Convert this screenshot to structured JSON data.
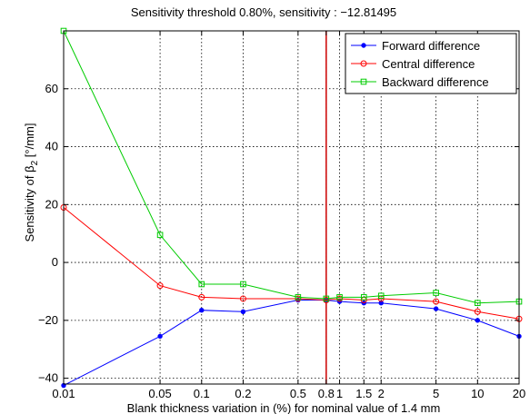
{
  "chart_data": {
    "type": "line",
    "title": "Sensitivity threshold  0.80%, sensitivity : −12.81495",
    "xlabel": "Blank thickness variation in (%) for  nominal value of 1.4 mm",
    "ylabel_main": "Sensitivity of β",
    "ylabel_sub": "2",
    "ylabel_unit": " [°/mm]",
    "x_scale": "log",
    "xlim": [
      0.01,
      20
    ],
    "ylim": [
      -42,
      80
    ],
    "x": [
      0.01,
      0.05,
      0.1,
      0.2,
      0.5,
      0.8,
      1,
      1.5,
      2,
      5,
      10,
      20
    ],
    "x_tick_labels": [
      "0.01",
      "0.05",
      "0.1",
      "0.2",
      "0.5",
      "0.8",
      "1",
      "1.5",
      "2",
      "5",
      "10",
      "20"
    ],
    "y_ticks": [
      -40,
      -20,
      0,
      20,
      40,
      60
    ],
    "y_tick_labels": [
      "−40",
      "−20",
      "0",
      "20",
      "40",
      "60"
    ],
    "grid": true,
    "threshold_x": 0.8,
    "threshold_color": "#cc0000",
    "legend_position": "top-right",
    "series": [
      {
        "name": "Forward difference",
        "color": "#0000ff",
        "marker": "dot",
        "values": [
          -42.5,
          -25.5,
          -16.5,
          -17,
          -13,
          -13,
          -13.5,
          -14,
          -14,
          -16,
          -20,
          -25.5
        ]
      },
      {
        "name": "Central difference",
        "color": "#ff0000",
        "marker": "circle",
        "values": [
          19,
          -8,
          -12,
          -12.5,
          -12.5,
          -13,
          -12.5,
          -13,
          -12.5,
          -13.5,
          -17,
          -19.5
        ]
      },
      {
        "name": "Backward difference",
        "color": "#00cc00",
        "marker": "square",
        "values": [
          80,
          9.5,
          -7.5,
          -7.5,
          -12,
          -12.5,
          -12,
          -12,
          -11.5,
          -10.5,
          -14,
          -13.5
        ]
      }
    ]
  }
}
